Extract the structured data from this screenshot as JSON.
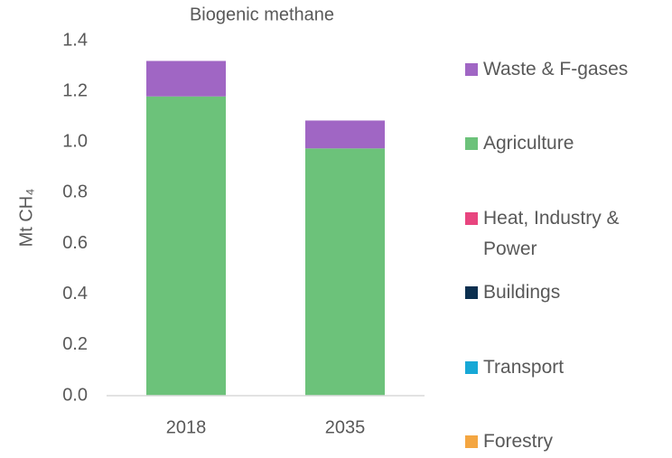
{
  "chart_data": {
    "type": "stacked-bar",
    "title": "Biogenic methane",
    "y_label": "Mt CH₄",
    "categories": [
      "2018",
      "2035"
    ],
    "series": [
      {
        "name": "Forestry",
        "color": "#f4a641",
        "values": [
          0,
          0
        ]
      },
      {
        "name": "Transport",
        "color": "#17a8d6",
        "values": [
          0,
          0
        ]
      },
      {
        "name": "Buildings",
        "color": "#0b2f4f",
        "values": [
          0,
          0
        ]
      },
      {
        "name": "Heat, Industry & Power",
        "color": "#e8457f",
        "values": [
          0,
          0
        ]
      },
      {
        "name": "Agriculture",
        "color": "#6cc27a",
        "values": [
          1.18,
          0.975
        ]
      },
      {
        "name": "Waste & F-gases",
        "color": "#a066c4",
        "values": [
          0.14,
          0.11
        ]
      }
    ],
    "ylim": [
      0,
      1.4
    ],
    "yticks": [
      {
        "value": 0,
        "label": "0.0"
      },
      0.2,
      0.4,
      0.6,
      0.8,
      {
        "value": 1,
        "label": "1.0"
      },
      1.2,
      1.4
    ],
    "legend": "right"
  }
}
